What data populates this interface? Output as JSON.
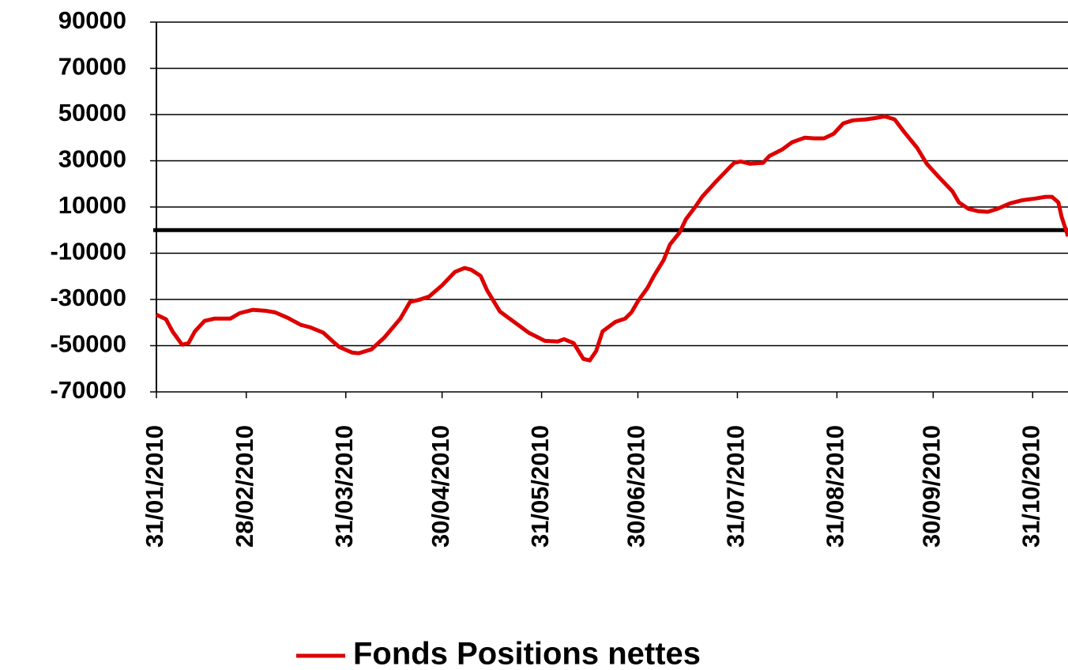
{
  "chart_data": {
    "type": "line",
    "x": [
      "31/01/2010",
      "03/02/2010",
      "05/02/2010",
      "08/02/2010",
      "10/02/2010",
      "12/02/2010",
      "15/02/2010",
      "18/02/2010",
      "23/02/2010",
      "26/02/2010",
      "02/03/2010",
      "06/03/2010",
      "09/03/2010",
      "13/03/2010",
      "17/03/2010",
      "20/03/2010",
      "24/03/2010",
      "27/03/2010",
      "29/03/2010",
      "02/04/2010",
      "04/04/2010",
      "08/04/2010",
      "12/04/2010",
      "17/04/2010",
      "20/04/2010",
      "23/04/2010",
      "26/04/2010",
      "30/04/2010",
      "04/05/2010",
      "07/05/2010",
      "09/05/2010",
      "12/05/2010",
      "14/05/2010",
      "18/05/2010",
      "23/05/2010",
      "27/05/2010",
      "30/05/2010",
      "01/06/2010",
      "05/06/2010",
      "07/06/2010",
      "10/06/2010",
      "13/06/2010",
      "15/06/2010",
      "17/06/2010",
      "19/06/2010",
      "23/06/2010",
      "26/06/2010",
      "28/06/2010",
      "30/06/2010",
      "03/07/2010",
      "05/07/2010",
      "08/07/2010",
      "10/07/2010",
      "13/07/2010",
      "15/07/2010",
      "18/07/2010",
      "20/07/2010",
      "24/07/2010",
      "28/07/2010",
      "30/07/2010",
      "01/08/2010",
      "04/08/2010",
      "08/08/2010",
      "10/08/2010",
      "14/08/2010",
      "17/08/2010",
      "21/08/2010",
      "24/08/2010",
      "27/08/2010",
      "30/08/2010",
      "02/09/2010",
      "05/09/2010",
      "09/09/2010",
      "12/09/2010",
      "15/09/2010",
      "18/09/2010",
      "21/09/2010",
      "25/09/2010",
      "28/09/2010",
      "02/10/2010",
      "06/10/2010",
      "08/10/2010",
      "11/10/2010",
      "14/10/2010",
      "17/10/2010",
      "20/10/2010",
      "24/10/2010",
      "28/10/2010",
      "01/11/2010",
      "04/11/2010",
      "06/11/2010",
      "08/11/2010",
      "09/11/2010",
      "11/11/2010"
    ],
    "series": [
      {
        "name": "Fonds Positions nettes",
        "color": "#dd0000",
        "values": [
          -36600,
          -38600,
          -43800,
          -49600,
          -48900,
          -43800,
          -39300,
          -38300,
          -38300,
          -35900,
          -34500,
          -34900,
          -35600,
          -38000,
          -41000,
          -42100,
          -44400,
          -48200,
          -50600,
          -53000,
          -53300,
          -51600,
          -46500,
          -38300,
          -31100,
          -30100,
          -28700,
          -23900,
          -18100,
          -16400,
          -17100,
          -19800,
          -26000,
          -35200,
          -40300,
          -44400,
          -46500,
          -47900,
          -48200,
          -47200,
          -48900,
          -55700,
          -56400,
          -52300,
          -43800,
          -39700,
          -38300,
          -35600,
          -30800,
          -25000,
          -19800,
          -13000,
          -6200,
          -1000,
          4800,
          10300,
          14400,
          20500,
          26300,
          29100,
          29700,
          28700,
          29100,
          32100,
          34900,
          38000,
          40000,
          39700,
          39700,
          41700,
          46200,
          47500,
          47900,
          48500,
          49200,
          47900,
          42400,
          35600,
          28700,
          22600,
          16800,
          12000,
          9200,
          8200,
          7900,
          9200,
          11600,
          13000,
          13700,
          14400,
          14400,
          12000,
          5800,
          -2700
        ]
      }
    ],
    "xlim": [
      "31/01/2010",
      "11/11/2010"
    ],
    "xticks": [
      "31/01/2010",
      "28/02/2010",
      "31/03/2010",
      "30/04/2010",
      "31/05/2010",
      "30/06/2010",
      "31/07/2010",
      "31/08/2010",
      "30/09/2010",
      "31/10/2010"
    ],
    "ylim": [
      -70000,
      90000
    ],
    "yticks": [
      90000,
      70000,
      50000,
      30000,
      10000,
      -10000,
      -30000,
      -50000,
      -70000
    ],
    "grid": true,
    "zero_line": true,
    "legend": "bottom"
  }
}
